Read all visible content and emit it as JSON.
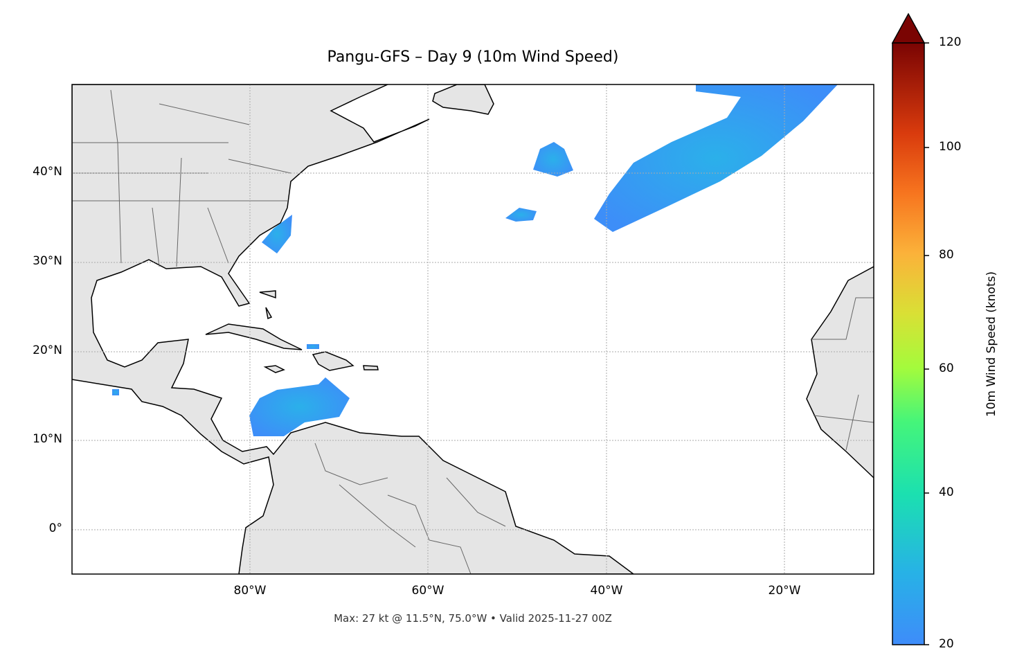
{
  "title": "Pangu-GFS – Day 9 (10m Wind Speed)",
  "lat_ticks": [
    "40°N",
    "30°N",
    "20°N",
    "10°N",
    "0°"
  ],
  "lon_ticks": [
    "80°W",
    "60°W",
    "40°W",
    "20°W"
  ],
  "footer": "Max: 27 kt @ 11.5°N, 75.0°W • Valid 2025-11-27 00Z",
  "colorbar": {
    "label": "10m Wind Speed (knots)",
    "ticks": [
      "20",
      "40",
      "60",
      "80",
      "100",
      "120"
    ],
    "range": [
      20,
      120
    ],
    "extend": "max",
    "colormap": "turbo"
  },
  "map": {
    "extent_lon": [
      -100,
      -10
    ],
    "extent_lat": [
      -5,
      50
    ],
    "land_color": "#e5e5e5",
    "wind_color": "#3d8ef8",
    "gridlines": true
  }
}
